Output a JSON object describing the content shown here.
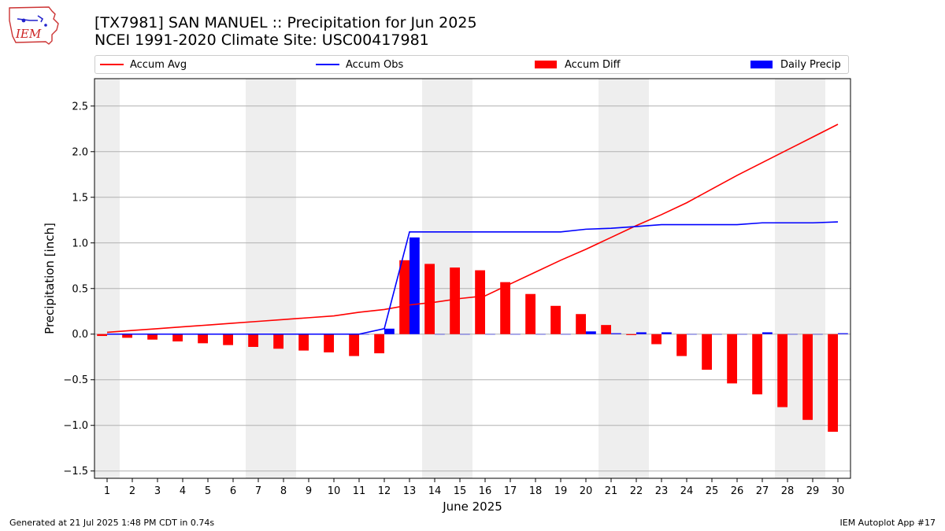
{
  "header": {
    "title": "[TX7981] SAN MANUEL :: Precipitation for Jun 2025",
    "subtitle": "NCEI 1991-2020 Climate Site: USC00417981",
    "logo_text": "IEM"
  },
  "legend": {
    "accum_avg": "Accum Avg",
    "accum_obs": "Accum Obs",
    "accum_diff": "Accum Diff",
    "daily_precip": "Daily Precip"
  },
  "footer": {
    "generated": "Generated at 21 Jul 2025 1:48 PM CDT in 0.74s",
    "app": "IEM Autoplot App #17"
  },
  "colors": {
    "avg": "#ff0000",
    "obs": "#0000ff",
    "diff": "#ff0000",
    "daily": "#0000ff",
    "weekend": "#eeeeee",
    "grid": "#b0b0b0"
  },
  "chart_data": {
    "type": "bar",
    "xlabel": "June 2025",
    "ylabel": "Precipitation [inch]",
    "ylim": [
      -1.58,
      2.8
    ],
    "yticks": [
      -1.5,
      -1.0,
      -0.5,
      0.0,
      0.5,
      1.0,
      1.5,
      2.0,
      2.5
    ],
    "ytick_labels": [
      "−1.5",
      "−1.0",
      "−0.5",
      "0.0",
      "0.5",
      "1.0",
      "1.5",
      "2.0",
      "2.5"
    ],
    "x": [
      1,
      2,
      3,
      4,
      5,
      6,
      7,
      8,
      9,
      10,
      11,
      12,
      13,
      14,
      15,
      16,
      17,
      18,
      19,
      20,
      21,
      22,
      23,
      24,
      25,
      26,
      27,
      28,
      29,
      30
    ],
    "x_tick_labels": [
      "1",
      "2",
      "3",
      "4",
      "5",
      "6",
      "7",
      "8",
      "9",
      "10",
      "11",
      "12",
      "13",
      "14",
      "15",
      "16",
      "17",
      "18",
      "19",
      "20",
      "21",
      "22",
      "23",
      "24",
      "25",
      "26",
      "27",
      "28",
      "29",
      "30"
    ],
    "shaded_ranges": [
      [
        0.5,
        1.5
      ],
      [
        6.5,
        8.5
      ],
      [
        13.5,
        15.5
      ],
      [
        20.5,
        22.5
      ],
      [
        27.5,
        29.5
      ]
    ],
    "grid": "horizontal",
    "legend_position": "top",
    "series": [
      {
        "name": "Accum Avg",
        "kind": "line",
        "values": [
          0.02,
          0.04,
          0.06,
          0.08,
          0.1,
          0.12,
          0.14,
          0.16,
          0.18,
          0.2,
          0.24,
          0.27,
          0.32,
          0.35,
          0.39,
          0.42,
          0.55,
          0.68,
          0.81,
          0.93,
          1.06,
          1.19,
          1.31,
          1.44,
          1.59,
          1.74,
          1.88,
          2.02,
          2.16,
          2.3
        ]
      },
      {
        "name": "Accum Obs",
        "kind": "line",
        "values": [
          0,
          0,
          0,
          0,
          0,
          0,
          0,
          0,
          0,
          0,
          0,
          0.06,
          1.12,
          1.12,
          1.12,
          1.12,
          1.12,
          1.12,
          1.12,
          1.15,
          1.16,
          1.18,
          1.2,
          1.2,
          1.2,
          1.2,
          1.22,
          1.22,
          1.22,
          1.23
        ]
      },
      {
        "name": "Accum Diff",
        "kind": "bar",
        "values": [
          -0.02,
          -0.04,
          -0.06,
          -0.08,
          -0.1,
          -0.12,
          -0.14,
          -0.16,
          -0.18,
          -0.2,
          -0.24,
          -0.21,
          0.81,
          0.77,
          0.73,
          0.7,
          0.57,
          0.44,
          0.31,
          0.22,
          0.1,
          -0.01,
          -0.11,
          -0.24,
          -0.39,
          -0.54,
          -0.66,
          -0.8,
          -0.94,
          -1.07
        ]
      },
      {
        "name": "Daily Precip",
        "kind": "bar",
        "values": [
          0,
          0,
          0,
          0,
          0,
          0,
          0,
          0,
          0,
          0,
          0,
          0.06,
          1.06,
          0,
          0,
          0,
          0,
          0,
          0,
          0.03,
          0.01,
          0.02,
          0.02,
          0,
          0,
          0,
          0.02,
          0,
          0,
          0.01
        ]
      }
    ]
  }
}
